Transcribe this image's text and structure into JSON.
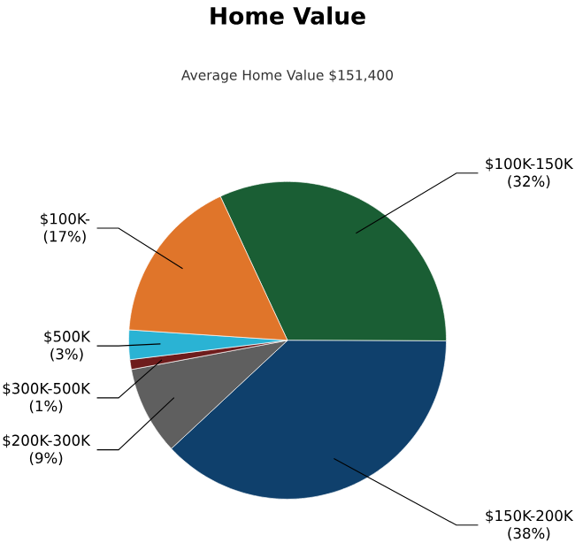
{
  "chart_data": {
    "type": "pie",
    "title": "Home Value",
    "subtitle": "Average Home Value  $151,400",
    "categories": [
      "$100K-150K",
      "$150K-200K",
      "$200K-300K",
      "$300K-500K",
      "$500K",
      "$100K-"
    ],
    "values": [
      32,
      38,
      9,
      1,
      3,
      17
    ],
    "value_labels": [
      "(32%)",
      "(38%)",
      "(9%)",
      "(1%)",
      "(3%)",
      "(17%)"
    ],
    "colors": [
      "#1a5e34",
      "#0f406c",
      "#5f5f5f",
      "#6e1c1c",
      "#2ab3d4",
      "#e0752a"
    ]
  }
}
